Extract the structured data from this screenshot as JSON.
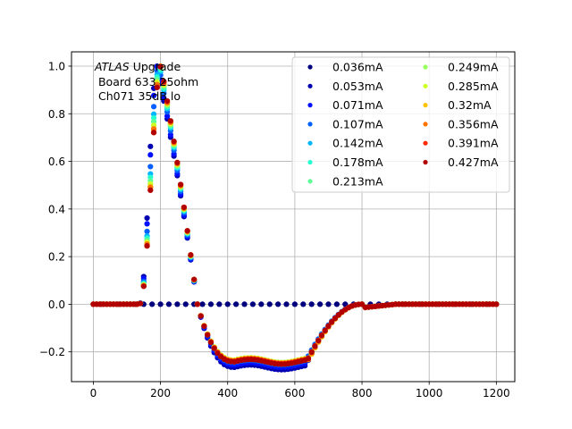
{
  "chart_data": {
    "type": "scatter",
    "annotation": {
      "line1_italic": "ATLAS",
      "line1_rest": " Upgrade",
      "line2": "Board 633 25ohm",
      "line3": "Ch071 35dB lo"
    },
    "xlim": [
      -65,
      1255
    ],
    "ylim": [
      -0.325,
      1.06
    ],
    "x_ticks": [
      0,
      200,
      400,
      600,
      800,
      1000,
      1200
    ],
    "y_ticks": [
      -0.2,
      0.0,
      0.2,
      0.4,
      0.6,
      0.8,
      1.0
    ],
    "x_tick_labels": [
      "0",
      "200",
      "400",
      "600",
      "800",
      "1000",
      "1200"
    ],
    "y_tick_labels": [
      "−0.2",
      "0.0",
      "0.2",
      "0.4",
      "0.6",
      "0.8",
      "1.0"
    ],
    "grid": true,
    "legend_position": "top-right",
    "legend_columns": 2,
    "x_range": [
      0,
      1200
    ],
    "x_step": 10,
    "series": [
      {
        "name": "0.036mA",
        "color": "#00007f",
        "shape": "flat",
        "level": 0.0
      },
      {
        "name": "0.053mA",
        "color": "#0000b2",
        "shape": "pulse",
        "peak_x": 190,
        "undershoot": -0.265,
        "recover_x": 650
      },
      {
        "name": "0.071mA",
        "color": "#0010ff",
        "shape": "pulse",
        "peak_x": 192,
        "undershoot": -0.255,
        "recover_x": 650
      },
      {
        "name": "0.107mA",
        "color": "#0060ff",
        "shape": "pulse",
        "peak_x": 195,
        "undershoot": -0.245,
        "recover_x": 650
      },
      {
        "name": "0.142mA",
        "color": "#00b4ff",
        "shape": "pulse",
        "peak_x": 197,
        "undershoot": -0.24,
        "recover_x": 655
      },
      {
        "name": "0.178mA",
        "color": "#26ffd0",
        "shape": "pulse",
        "peak_x": 198,
        "undershoot": -0.238,
        "recover_x": 658
      },
      {
        "name": "0.213mA",
        "color": "#5fff97",
        "shape": "pulse",
        "peak_x": 199,
        "undershoot": -0.236,
        "recover_x": 660
      },
      {
        "name": "0.249mA",
        "color": "#97ff5f",
        "shape": "pulse",
        "peak_x": 200,
        "undershoot": -0.235,
        "recover_x": 660
      },
      {
        "name": "0.285mA",
        "color": "#d0ff26",
        "shape": "pulse",
        "peak_x": 200,
        "undershoot": -0.235,
        "recover_x": 660
      },
      {
        "name": "0.32mA",
        "color": "#ffc400",
        "shape": "pulse",
        "peak_x": 201,
        "undershoot": -0.237,
        "recover_x": 660
      },
      {
        "name": "0.356mA",
        "color": "#ff7300",
        "shape": "pulse",
        "peak_x": 201,
        "undershoot": -0.238,
        "recover_x": 658
      },
      {
        "name": "0.391mA",
        "color": "#ff2900",
        "shape": "pulse",
        "peak_x": 202,
        "undershoot": -0.24,
        "recover_x": 655
      },
      {
        "name": "0.427mA",
        "color": "#b20000",
        "shape": "pulse",
        "peak_x": 202,
        "undershoot": -0.242,
        "recover_x": 655
      }
    ]
  }
}
